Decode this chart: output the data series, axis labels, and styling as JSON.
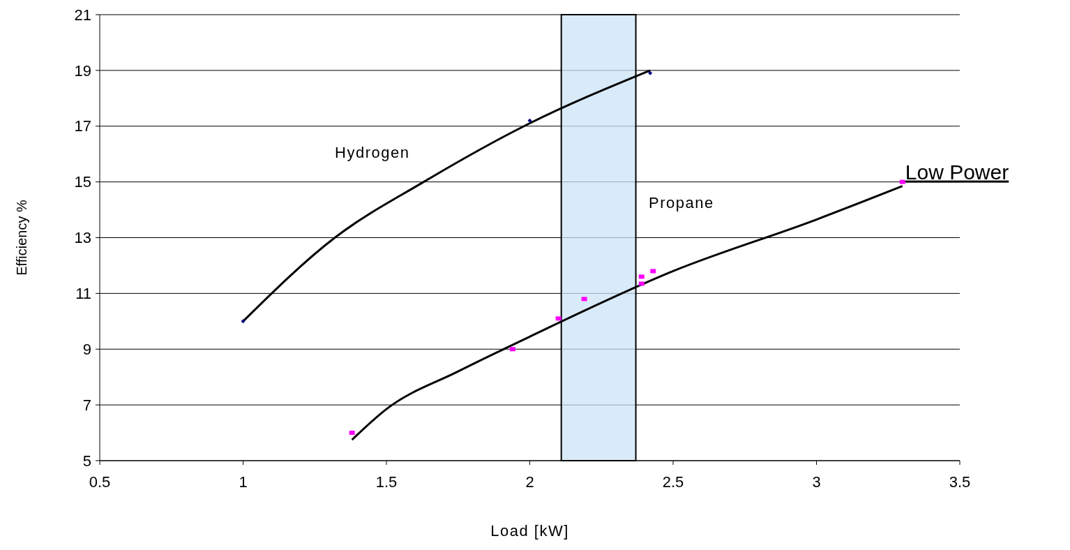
{
  "chart_data": {
    "type": "scatter",
    "xlabel": "Load [kW]",
    "ylabel": "Efficiency %",
    "xlim": [
      0.5,
      3.5
    ],
    "xticks": [
      0.5,
      1,
      1.5,
      2,
      2.5,
      3,
      3.5
    ],
    "ylim": [
      5,
      21
    ],
    "yticks": [
      5,
      7,
      9,
      11,
      13,
      15,
      17,
      19,
      21
    ],
    "grid": "y",
    "series": [
      {
        "name": "Hydrogen",
        "type": "line",
        "color": "#000000",
        "x": [
          1,
          1.32,
          1.63,
          1.98,
          2.42
        ],
        "values": [
          10,
          13,
          15,
          17,
          19
        ],
        "marker": "none"
      },
      {
        "name": "Propane",
        "type": "line",
        "color": "#000000",
        "x": [
          1.38,
          1.5,
          1.75,
          2,
          2.5,
          3,
          3.3
        ],
        "values": [
          5.75,
          6.85,
          8.2,
          9.45,
          11.8,
          13.65,
          14.85
        ],
        "marker": "none"
      },
      {
        "color": "#000080",
        "x": [
          1,
          2,
          2.42
        ],
        "values": [
          10,
          17.2,
          18.9
        ],
        "marker": "diamond"
      },
      {
        "color": "#ff00ff",
        "x": [
          1.38,
          1.94,
          2.1,
          2.19,
          2.39,
          2.39,
          2.43,
          3.3
        ],
        "values": [
          6,
          9,
          10.1,
          10.8,
          11.6,
          11.35,
          11.8,
          15
        ],
        "marker": "square"
      }
    ],
    "bands": [
      {
        "axis": "x",
        "from": 2.11,
        "to": 2.37,
        "color": "#cce4f7"
      }
    ],
    "annotations": [
      {
        "text": "Low Power",
        "x": 3.3,
        "y": 15
      }
    ]
  }
}
